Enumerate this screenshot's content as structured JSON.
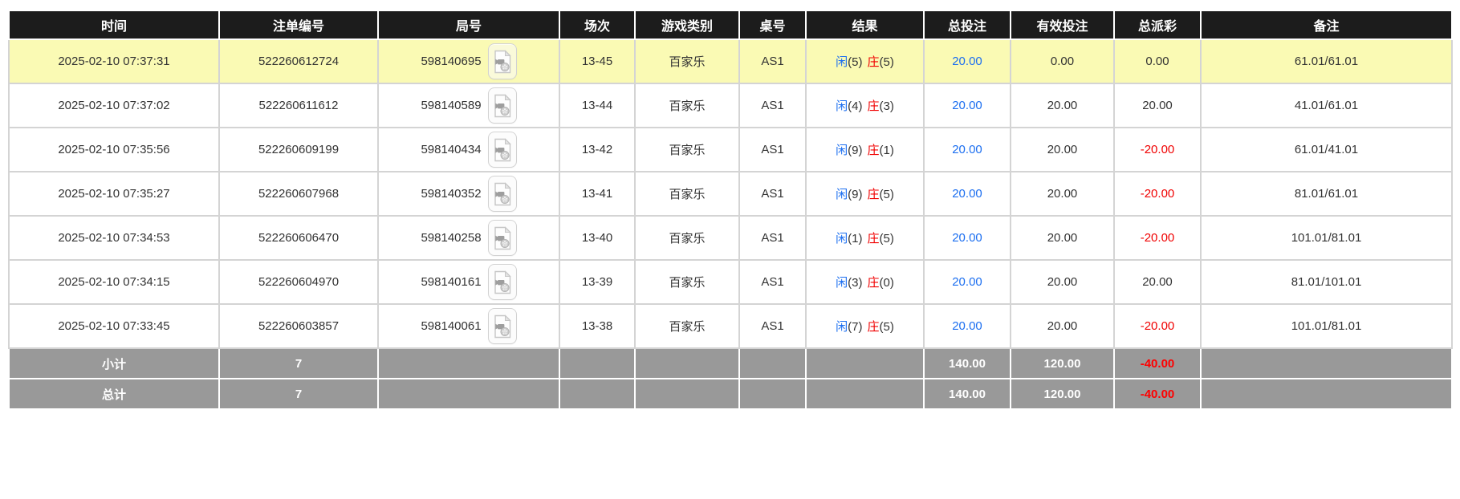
{
  "colors": {
    "header_bg": "#1c1c1c",
    "footer_bg": "#999999",
    "highlight_row": "#fafab4",
    "accent_blue": "#1b6ef0",
    "accent_red": "#f00000"
  },
  "icons": {
    "video_icon_name": "video-file-icon"
  },
  "table": {
    "columns": [
      {
        "id": "time",
        "label": "时间"
      },
      {
        "id": "bet-no",
        "label": "注单编号"
      },
      {
        "id": "round-no",
        "label": "局号"
      },
      {
        "id": "session",
        "label": "场次"
      },
      {
        "id": "game-type",
        "label": "游戏类别"
      },
      {
        "id": "table-no",
        "label": "桌号"
      },
      {
        "id": "result",
        "label": "结果"
      },
      {
        "id": "total-bet",
        "label": "总投注"
      },
      {
        "id": "valid-bet",
        "label": "有效投注"
      },
      {
        "id": "payout",
        "label": "总派彩"
      },
      {
        "id": "remark",
        "label": "备注"
      }
    ],
    "rows": [
      {
        "time": "2025-02-10 07:37:31",
        "bet_no": "522260612724",
        "round_no": "598140695",
        "session": "13-45",
        "game": "百家乐",
        "table_no": "AS1",
        "result": {
          "player_label": "闲",
          "player_score": "(5)",
          "banker_label": "庄",
          "banker_score": "(5)"
        },
        "total_bet": "20.00",
        "valid_bet": "0.00",
        "payout": "0.00",
        "remark": "61.01/61.01",
        "highlighted": true
      },
      {
        "time": "2025-02-10 07:37:02",
        "bet_no": "522260611612",
        "round_no": "598140589",
        "session": "13-44",
        "game": "百家乐",
        "table_no": "AS1",
        "result": {
          "player_label": "闲",
          "player_score": "(4)",
          "banker_label": "庄",
          "banker_score": "(3)"
        },
        "total_bet": "20.00",
        "valid_bet": "20.00",
        "payout": "20.00",
        "remark": "41.01/61.01",
        "highlighted": false
      },
      {
        "time": "2025-02-10 07:35:56",
        "bet_no": "522260609199",
        "round_no": "598140434",
        "session": "13-42",
        "game": "百家乐",
        "table_no": "AS1",
        "result": {
          "player_label": "闲",
          "player_score": "(9)",
          "banker_label": "庄",
          "banker_score": "(1)"
        },
        "total_bet": "20.00",
        "valid_bet": "20.00",
        "payout": "-20.00",
        "remark": "61.01/41.01",
        "highlighted": false
      },
      {
        "time": "2025-02-10 07:35:27",
        "bet_no": "522260607968",
        "round_no": "598140352",
        "session": "13-41",
        "game": "百家乐",
        "table_no": "AS1",
        "result": {
          "player_label": "闲",
          "player_score": "(9)",
          "banker_label": "庄",
          "banker_score": "(5)"
        },
        "total_bet": "20.00",
        "valid_bet": "20.00",
        "payout": "-20.00",
        "remark": "81.01/61.01",
        "highlighted": false
      },
      {
        "time": "2025-02-10 07:34:53",
        "bet_no": "522260606470",
        "round_no": "598140258",
        "session": "13-40",
        "game": "百家乐",
        "table_no": "AS1",
        "result": {
          "player_label": "闲",
          "player_score": "(1)",
          "banker_label": "庄",
          "banker_score": "(5)"
        },
        "total_bet": "20.00",
        "valid_bet": "20.00",
        "payout": "-20.00",
        "remark": "101.01/81.01",
        "highlighted": false
      },
      {
        "time": "2025-02-10 07:34:15",
        "bet_no": "522260604970",
        "round_no": "598140161",
        "session": "13-39",
        "game": "百家乐",
        "table_no": "AS1",
        "result": {
          "player_label": "闲",
          "player_score": "(3)",
          "banker_label": "庄",
          "banker_score": "(0)"
        },
        "total_bet": "20.00",
        "valid_bet": "20.00",
        "payout": "20.00",
        "remark": "81.01/101.01",
        "highlighted": false
      },
      {
        "time": "2025-02-10 07:33:45",
        "bet_no": "522260603857",
        "round_no": "598140061",
        "session": "13-38",
        "game": "百家乐",
        "table_no": "AS1",
        "result": {
          "player_label": "闲",
          "player_score": "(7)",
          "banker_label": "庄",
          "banker_score": "(5)"
        },
        "total_bet": "20.00",
        "valid_bet": "20.00",
        "payout": "-20.00",
        "remark": "101.01/81.01",
        "highlighted": false
      }
    ],
    "footer_rows": [
      {
        "id": "subtotal",
        "label": "小计",
        "count": "7",
        "total_bet": "140.00",
        "valid_bet": "120.00",
        "payout": "-40.00"
      },
      {
        "id": "grand-total",
        "label": "总计",
        "count": "7",
        "total_bet": "140.00",
        "valid_bet": "120.00",
        "payout": "-40.00"
      }
    ]
  }
}
